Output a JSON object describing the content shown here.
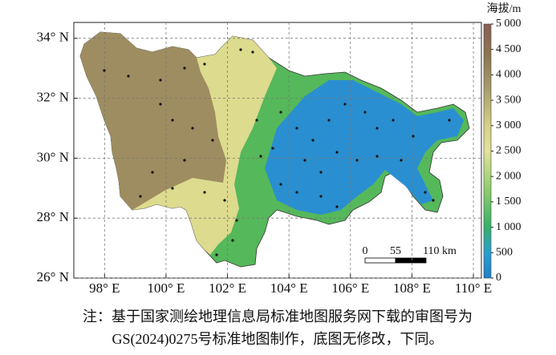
{
  "map": {
    "xlim": [
      97.0,
      110.26
    ],
    "ylim": [
      26,
      34.53
    ],
    "xticks": [
      {
        "value": 98,
        "label": "98° E"
      },
      {
        "value": 100,
        "label": "100° E"
      },
      {
        "value": 102,
        "label": "102° E"
      },
      {
        "value": 104,
        "label": "104° E"
      },
      {
        "value": 106,
        "label": "106° E"
      },
      {
        "value": 108,
        "label": "108° E"
      },
      {
        "value": 110,
        "label": "110° E"
      }
    ],
    "yticks": [
      {
        "value": 26,
        "label": "26° N"
      },
      {
        "value": 28,
        "label": "28° N"
      },
      {
        "value": 30,
        "label": "30° N"
      },
      {
        "value": 32,
        "label": "32° N"
      },
      {
        "value": 34,
        "label": "34° N"
      }
    ],
    "grid": true,
    "colorbar": {
      "title": "海拔/m",
      "lim": [
        0,
        5000
      ],
      "ticks": [
        {
          "value": 5000,
          "label": "5 000"
        },
        {
          "value": 4500,
          "label": "4 500"
        },
        {
          "value": 4000,
          "label": "4 000"
        },
        {
          "value": 3500,
          "label": "3 500"
        },
        {
          "value": 3000,
          "label": "3 000"
        },
        {
          "value": 2500,
          "label": "2 500"
        },
        {
          "value": 2000,
          "label": "2 000"
        },
        {
          "value": 1500,
          "label": "1 500"
        },
        {
          "value": 1000,
          "label": "1 000"
        },
        500,
        0
      ]
    },
    "scale_bar": {
      "labels": [
        "0",
        "55",
        "110 km"
      ]
    }
  },
  "note": [
    "注：基于国家测绘地理信息局标准地图服务网下载的审图号为",
    "GS(2024)0275号标准地图制作，底图无修改，下同。"
  ]
}
